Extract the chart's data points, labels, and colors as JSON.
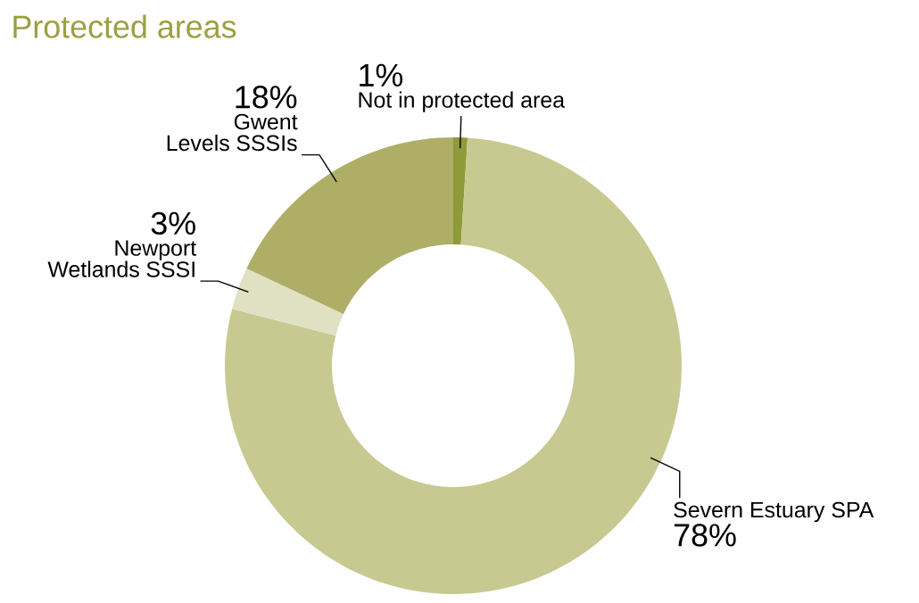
{
  "chart_data": {
    "type": "donut",
    "title": "Protected areas",
    "categories": [
      "Not in protected area",
      "Severn Estuary SPA",
      "Newport Wetlands SSSI",
      "Gwent Levels SSSIs"
    ],
    "values": [
      1,
      78,
      3,
      18
    ],
    "colors": [
      "#8f9a3a",
      "#c8c990",
      "#e0e1c3",
      "#aeae66"
    ],
    "value_labels": [
      "1%",
      "78%",
      "3%",
      "18%"
    ]
  }
}
